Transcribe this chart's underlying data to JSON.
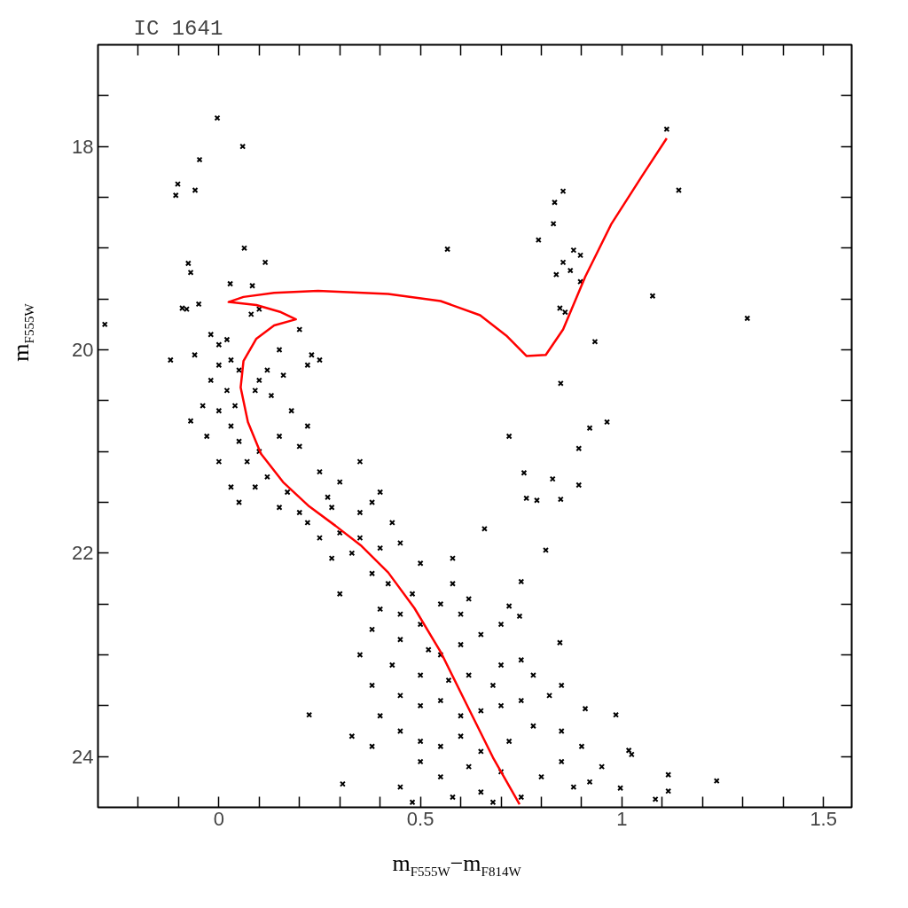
{
  "chart_data": {
    "type": "scatter",
    "title": "IC 1641",
    "xlabel": "m$_{F555W}$−m$_{F814W}$",
    "ylabel": "m$_{F555W}$",
    "xlim": [
      -0.3,
      1.57
    ],
    "ylim": [
      24.5,
      17
    ],
    "xticks": [
      {
        "value": -0.2,
        "label": null
      },
      {
        "value": -0.1,
        "label": null
      },
      {
        "value": 0,
        "label": "0"
      },
      {
        "value": 0.1,
        "label": null
      },
      {
        "value": 0.2,
        "label": null
      },
      {
        "value": 0.3,
        "label": null
      },
      {
        "value": 0.4,
        "label": null
      },
      0.5,
      {
        "value": 0.6,
        "label": null
      },
      {
        "value": 0.7,
        "label": null
      },
      {
        "value": 0.8,
        "label": null
      },
      {
        "value": 0.9,
        "label": null
      },
      1,
      {
        "value": 1.1,
        "label": null
      },
      {
        "value": 1.2,
        "label": null
      },
      {
        "value": 1.3,
        "label": null
      },
      {
        "value": 1.4,
        "label": null
      },
      1.5
    ],
    "yticks": [
      {
        "value": 17.5,
        "label": null
      },
      18,
      {
        "value": 18.5,
        "label": null
      },
      {
        "value": 19,
        "label": null
      },
      {
        "value": 19.5,
        "label": null
      },
      20,
      {
        "value": 20.5,
        "label": null
      },
      {
        "value": 21,
        "label": null
      },
      {
        "value": 21.5,
        "label": null
      },
      22,
      {
        "value": 22.5,
        "label": null
      },
      {
        "value": 23,
        "label": null
      },
      {
        "value": 23.5,
        "label": null
      },
      24
    ],
    "series": [
      {
        "type": "scatter",
        "color": "#000000",
        "marker": "cross",
        "x": [
          -0.004,
          0.059,
          -0.048,
          -0.102,
          -0.107,
          -0.059,
          -0.283,
          0.063,
          0.115,
          -0.076,
          -0.07,
          0.028,
          0.083,
          -0.091,
          1.111,
          1.141,
          0.854,
          0.833,
          0.83,
          0.793,
          0.567,
          0.88,
          0.897,
          0.854,
          0.872,
          0.837,
          0.897,
          1.076,
          0.846,
          0.859,
          1.311,
          0.933,
          0.848,
          0.963,
          0.92,
          0.72,
          0.893,
          0.757,
          0.828,
          0.763,
          0.789,
          0.848,
          0.893,
          0.659,
          0.811,
          0.75,
          0.72,
          0.746,
          0.846,
          0.224,
          0.909,
          0.985,
          1.017,
          1.024,
          1.115,
          1.115,
          1.235,
          0.307,
          1.083,
          0.996,
          -0.08,
          -0.05,
          -0.02,
          0.0,
          0.02,
          -0.12,
          -0.06,
          0.0,
          0.03,
          0.05,
          -0.02,
          0.02,
          -0.04,
          0.0,
          0.03,
          -0.07,
          0.04,
          0.1,
          0.12,
          0.09,
          0.15,
          0.2,
          0.23,
          0.22,
          0.16,
          0.08,
          0.1,
          0.25,
          0.13,
          0.18,
          0.05,
          -0.03,
          0.0,
          0.07,
          0.1,
          0.15,
          0.2,
          0.22,
          0.12,
          0.09,
          0.05,
          0.03,
          0.17,
          0.15,
          0.25,
          0.3,
          0.35,
          0.28,
          0.22,
          0.2,
          0.25,
          0.3,
          0.35,
          0.38,
          0.4,
          0.43,
          0.33,
          0.28,
          0.4,
          0.45,
          0.38,
          0.42,
          0.5,
          0.48,
          0.45,
          0.5,
          0.55,
          0.58,
          0.6,
          0.4,
          0.38,
          0.45,
          0.52,
          0.55,
          0.6,
          0.65,
          0.7,
          0.75,
          0.78,
          0.68,
          0.62,
          0.57,
          0.5,
          0.43,
          0.35,
          0.38,
          0.45,
          0.5,
          0.55,
          0.6,
          0.65,
          0.7,
          0.75,
          0.82,
          0.85,
          0.4,
          0.45,
          0.5,
          0.55,
          0.6,
          0.65,
          0.72,
          0.78,
          0.85,
          0.9,
          0.95,
          0.85,
          0.8,
          0.7,
          0.62,
          0.55,
          0.5,
          0.45,
          0.58,
          0.65,
          0.75,
          0.88,
          0.92,
          0.38,
          0.33,
          0.48,
          0.68,
          0.3,
          0.58,
          0.62,
          0.7,
          0.35,
          0.27
        ],
        "values": [
          17.72,
          18.0,
          18.13,
          18.37,
          18.48,
          18.43,
          19.75,
          19.0,
          19.14,
          19.15,
          19.24,
          19.35,
          19.37,
          19.59,
          17.83,
          18.43,
          18.44,
          18.55,
          18.76,
          18.92,
          19.01,
          19.02,
          19.07,
          19.14,
          19.22,
          19.26,
          19.33,
          19.47,
          19.59,
          19.63,
          19.69,
          19.92,
          20.33,
          20.71,
          20.77,
          20.85,
          20.97,
          21.21,
          21.27,
          21.46,
          21.48,
          21.47,
          21.33,
          21.76,
          21.97,
          22.28,
          22.52,
          22.62,
          22.88,
          23.59,
          23.53,
          23.59,
          23.94,
          23.98,
          24.18,
          24.34,
          24.24,
          24.27,
          24.42,
          24.31,
          19.6,
          19.55,
          19.85,
          19.95,
          19.9,
          20.1,
          20.05,
          20.15,
          20.1,
          20.2,
          20.3,
          20.4,
          20.55,
          20.6,
          20.75,
          20.7,
          20.55,
          20.3,
          20.2,
          20.4,
          20.0,
          19.8,
          20.05,
          20.15,
          20.25,
          19.65,
          19.6,
          20.1,
          20.45,
          20.6,
          20.9,
          20.85,
          21.1,
          21.1,
          21.0,
          20.85,
          20.95,
          20.75,
          21.25,
          21.35,
          21.5,
          21.35,
          21.4,
          21.55,
          21.2,
          21.3,
          21.1,
          21.55,
          21.7,
          21.6,
          21.85,
          21.8,
          21.6,
          21.5,
          21.4,
          21.7,
          22.0,
          22.05,
          21.95,
          21.9,
          22.2,
          22.3,
          22.1,
          22.4,
          22.6,
          22.7,
          22.5,
          22.3,
          22.6,
          22.55,
          22.75,
          22.85,
          22.95,
          23.0,
          22.9,
          22.8,
          23.1,
          23.05,
          23.2,
          23.3,
          23.2,
          23.25,
          23.2,
          23.1,
          23.0,
          23.3,
          23.4,
          23.5,
          23.45,
          23.6,
          23.55,
          23.5,
          23.45,
          23.4,
          23.3,
          23.6,
          23.75,
          23.85,
          23.9,
          23.8,
          23.95,
          23.85,
          23.7,
          23.75,
          23.9,
          24.1,
          24.05,
          24.2,
          24.15,
          24.1,
          24.2,
          24.05,
          24.3,
          24.4,
          24.35,
          24.4,
          24.3,
          24.25,
          23.9,
          23.8,
          24.45,
          24.45,
          22.4,
          22.05,
          22.45,
          22.7,
          21.85,
          21.45
        ]
      },
      {
        "type": "line",
        "color": "#ff0000",
        "marker": "none",
        "line_style": "solid",
        "x": [
          0.746,
          0.68,
          0.615,
          0.55,
          0.485,
          0.42,
          0.354,
          0.289,
          0.224,
          0.159,
          0.104,
          0.072,
          0.054,
          0.061,
          0.093,
          0.137,
          0.191,
          0.154,
          0.093,
          0.024,
          0.061,
          0.137,
          0.246,
          0.42,
          0.55,
          0.648,
          0.713,
          0.763,
          0.811,
          0.854,
          0.909,
          0.974,
          1.05,
          1.111
        ],
        "values": [
          24.47,
          24.01,
          23.49,
          22.97,
          22.54,
          22.19,
          21.93,
          21.73,
          21.54,
          21.3,
          21.02,
          20.71,
          20.37,
          20.11,
          19.89,
          19.76,
          19.7,
          19.63,
          19.56,
          19.53,
          19.48,
          19.44,
          19.42,
          19.45,
          19.52,
          19.66,
          19.86,
          20.06,
          20.05,
          19.8,
          19.28,
          18.76,
          18.29,
          17.92
        ]
      }
    ]
  }
}
